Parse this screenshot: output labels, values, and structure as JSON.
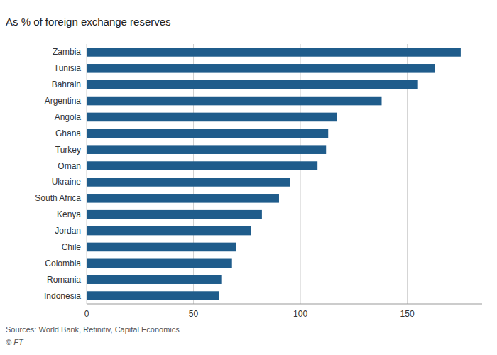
{
  "chart_data": {
    "type": "bar",
    "orientation": "horizontal",
    "title": "As % of foreign exchange reserves",
    "categories": [
      "Zambia",
      "Tunisia",
      "Bahrain",
      "Argentina",
      "Angola",
      "Ghana",
      "Turkey",
      "Oman",
      "Ukraine",
      "South Africa",
      "Kenya",
      "Jordan",
      "Chile",
      "Colombia",
      "Romania",
      "Indonesia"
    ],
    "values": [
      175,
      163,
      155,
      138,
      117,
      113,
      112,
      108,
      95,
      90,
      82,
      77,
      70,
      68,
      63,
      62
    ],
    "color": "#1f5c8b",
    "xlim": [
      0,
      185
    ],
    "xticks": [
      0,
      50,
      100,
      150
    ],
    "grid": true,
    "annotations": [
      "Sources: World Bank, Refinitiv, Capital Economics",
      "© FT"
    ]
  }
}
